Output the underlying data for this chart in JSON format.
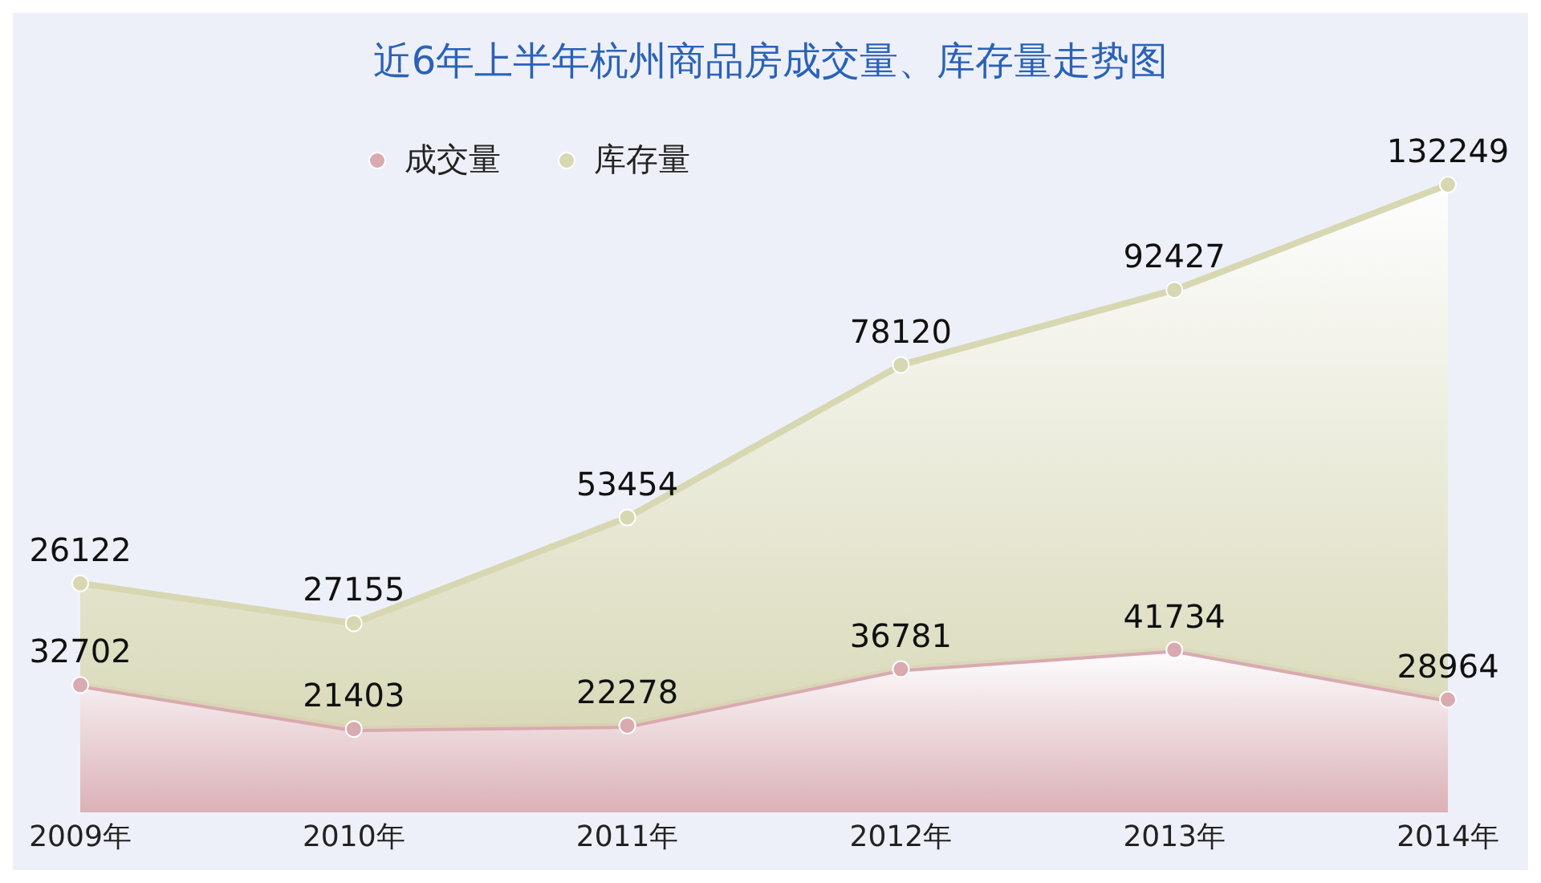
{
  "chart_data": {
    "type": "area",
    "title": "近6年上半年杭州商品房成交量、库存量走势图",
    "categories": [
      "2009年",
      "2010年",
      "2011年",
      "2012年",
      "2013年",
      "2014年"
    ],
    "stacked": true,
    "data_labels": true,
    "marker": "circle",
    "legend": "top left",
    "grid": false,
    "tick_labels": "x",
    "series": [
      {
        "name": "成交量",
        "color": "#d9aab0",
        "values": [
          32702,
          21403,
          22278,
          36781,
          41734,
          28964
        ]
      },
      {
        "name": "库存量",
        "color": "#d7d7b2",
        "values": [
          26122,
          27155,
          53454,
          78120,
          92427,
          132249
        ]
      }
    ]
  }
}
